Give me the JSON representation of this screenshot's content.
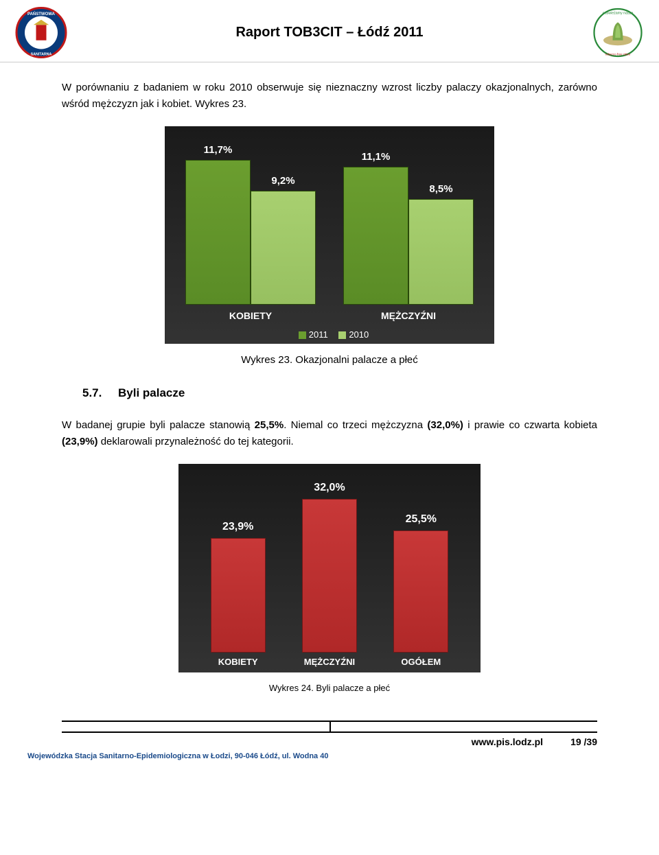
{
  "header": {
    "title": "Raport TOB3CIT – Łódź 2011"
  },
  "para1": "W porównaniu z badaniem w roku 2010 obserwuje się nieznaczny wzrost liczby palaczy okazjonalnych, zarówno wśród mężczyzn jak i kobiet. Wykres 23.",
  "chart1": {
    "type": "bar",
    "background": "#1f1f1f",
    "bar_color_2011": "#6b9e2f",
    "bar_color_2010": "#a8d070",
    "max": 13,
    "groups": [
      {
        "category": "KOBIETY",
        "v2011": 11.7,
        "v2011_label": "11,7%",
        "v2010": 9.2,
        "v2010_label": "9,2%"
      },
      {
        "category": "MĘŻCZYŹNI",
        "v2011": 11.1,
        "v2011_label": "11,1%",
        "v2010": 8.5,
        "v2010_label": "8,5%"
      }
    ],
    "legend": {
      "y2011": "2011",
      "y2010": "2010"
    }
  },
  "caption1": "Wykres 23. Okazjonalni palacze a płeć",
  "section": {
    "num": "5.7.",
    "title": "Byli palacze"
  },
  "para2_a": "W badanej grupie byli palacze stanowią ",
  "para2_b": "25,5%",
  "para2_c": ". Niemal co trzeci mężczyzna ",
  "para2_d": "(32,0%)",
  "para2_e": " i prawie co czwarta kobieta ",
  "para2_f": "(23,9%)",
  "para2_g": " deklarowali przynależność do tej kategorii.",
  "chart2": {
    "type": "bar",
    "bar_color": "#c83838",
    "max": 35,
    "bars": [
      {
        "category": "KOBIETY",
        "value": 23.9,
        "label": "23,9%"
      },
      {
        "category": "MĘŻCZYŹNI",
        "value": 32.0,
        "label": "32,0%"
      },
      {
        "category": "OGÓŁEM",
        "value": 25.5,
        "label": "25,5%"
      }
    ]
  },
  "caption2": "Wykres 24. Byli palacze a płeć",
  "footer": {
    "url": "www.pis.lodz.pl",
    "page": "19 /39",
    "org": "Wojewódzka Stacja Sanitarno-Epidemiologiczna w Łodzi, 90-046 Łódź, ul. Wodna 40"
  }
}
